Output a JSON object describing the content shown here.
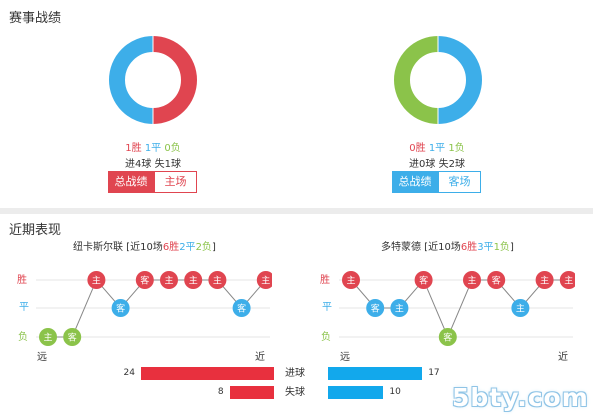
{
  "section1": {
    "title": "赛事战绩"
  },
  "teamA": {
    "wins": 1,
    "draws": 1,
    "losses": 0,
    "win_label": "1胜",
    "draw_label": "1平",
    "loss_label": "0负",
    "goals_line": "进4球 失1球",
    "tab_total": "总战绩",
    "tab_side": "主场"
  },
  "teamB": {
    "wins": 0,
    "draws": 1,
    "losses": 1,
    "win_label": "0胜",
    "draw_label": "1平",
    "loss_label": "1负",
    "goals_line": "进0球 失2球",
    "tab_total": "总战绩",
    "tab_side": "客场"
  },
  "section2": {
    "title": "近期表现"
  },
  "recent": [
    {
      "team": "纽卡斯尔联",
      "summary": {
        "open": " [近10场",
        "wins": "6胜",
        "draws": "2平",
        "losses": "2负",
        "close": "]"
      },
      "results": [
        "L",
        "L",
        "W",
        "D",
        "W",
        "W",
        "W",
        "W",
        "D",
        "W"
      ],
      "venues": [
        "主",
        "客",
        "主",
        "客",
        "客",
        "主",
        "主",
        "主",
        "客",
        "主"
      ],
      "goals_for": 24,
      "goals_against": 8
    },
    {
      "team": "多特蒙德",
      "summary": {
        "open": " [近10场",
        "wins": "6胜",
        "draws": "3平",
        "losses": "1负",
        "close": "]"
      },
      "results": [
        "W",
        "D",
        "D",
        "W",
        "L",
        "W",
        "W",
        "D",
        "W",
        "W"
      ],
      "venues": [
        "主",
        "客",
        "主",
        "客",
        "客",
        "主",
        "客",
        "主",
        "主",
        "主"
      ],
      "goals_for": 17,
      "goals_against": 10
    }
  ],
  "axis": {
    "win": "胜",
    "draw": "平",
    "loss": "负",
    "far": "远",
    "near": "近"
  },
  "bar_labels": {
    "scored": "进球",
    "conceded": "失球"
  },
  "colors": {
    "win": "#e04550",
    "draw": "#3daee9",
    "loss": "#8bc34a",
    "bar_red": "#e8303e",
    "bar_blue": "#12a8ec"
  },
  "watermark": "5bty.com"
}
